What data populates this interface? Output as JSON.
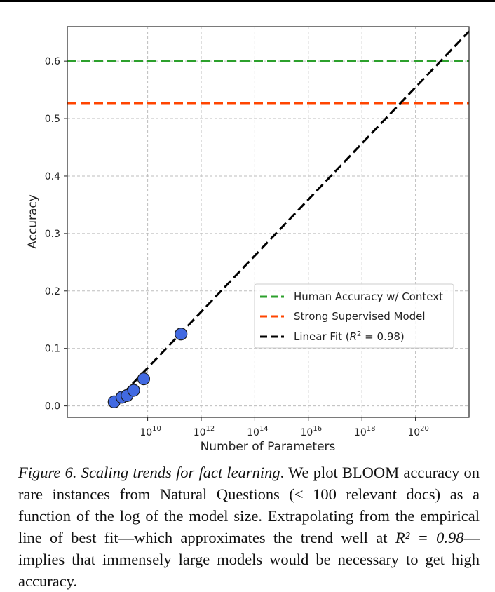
{
  "chart_data": {
    "type": "scatter",
    "xlabel": "Number of Parameters",
    "ylabel": "Accuracy",
    "x_scale": "log",
    "xlim": [
      10000000,
      10000000000000000000000
    ],
    "ylim": [
      -0.02,
      0.66
    ],
    "x_ticks": [
      10000000000,
      1000000000000,
      100000000000000,
      10000000000000000,
      1000000000000000000,
      100000000000000000000
    ],
    "x_tick_labels": [
      {
        "base": "10",
        "exp": "10"
      },
      {
        "base": "10",
        "exp": "12"
      },
      {
        "base": "10",
        "exp": "14"
      },
      {
        "base": "10",
        "exp": "16"
      },
      {
        "base": "10",
        "exp": "18"
      },
      {
        "base": "10",
        "exp": "20"
      }
    ],
    "y_ticks": [
      0.0,
      0.1,
      0.2,
      0.3,
      0.4,
      0.5,
      0.6
    ],
    "y_tick_labels": [
      "0.0",
      "0.1",
      "0.2",
      "0.3",
      "0.4",
      "0.5",
      "0.6"
    ],
    "grid": true,
    "legend_position": "center-right",
    "points": {
      "color": "#4169e1",
      "x": [
        560000000,
        1100000000,
        1700000000,
        3000000000,
        7100000000,
        176000000000
      ],
      "y": [
        0.007,
        0.015,
        0.018,
        0.027,
        0.047,
        0.125
      ]
    },
    "series": [
      {
        "name": "Human Accuracy w/ Context",
        "kind": "hline",
        "y": 0.6,
        "color": "#2ca02c"
      },
      {
        "name": "Strong Supervised Model",
        "kind": "hline",
        "y": 0.527,
        "color": "#ff4500"
      },
      {
        "name": "Linear Fit",
        "r2_label": "R² = 0.98",
        "kind": "line",
        "color": "#000000",
        "x": [
          560000000,
          10000000000000000000000
        ],
        "y": [
          0.005,
          0.652
        ]
      }
    ],
    "legend": [
      {
        "prefix": "Human Accuracy w/ Context",
        "color": "#2ca02c"
      },
      {
        "prefix": "Strong Supervised Model",
        "color": "#ff4500"
      },
      {
        "prefix": "Linear Fit (",
        "math_var": "R",
        "math_sup": "2",
        "suffix": " = 0.98)",
        "color": "#000000"
      }
    ]
  },
  "caption": {
    "label": "Figure 6.",
    "title": "Scaling trends for fact learning",
    "body_1": ". We plot BLOOM accuracy on rare instances from Natural Questions (",
    "math_1": "< 100",
    "body_2": " relevant docs) as a function of the log of the model size. Extrapolating from the empirical line of best fit—which approximates the trend well at ",
    "math_2": "R² = 0.98",
    "body_3": "—implies that immensely large models would be necessary to get high accuracy."
  }
}
